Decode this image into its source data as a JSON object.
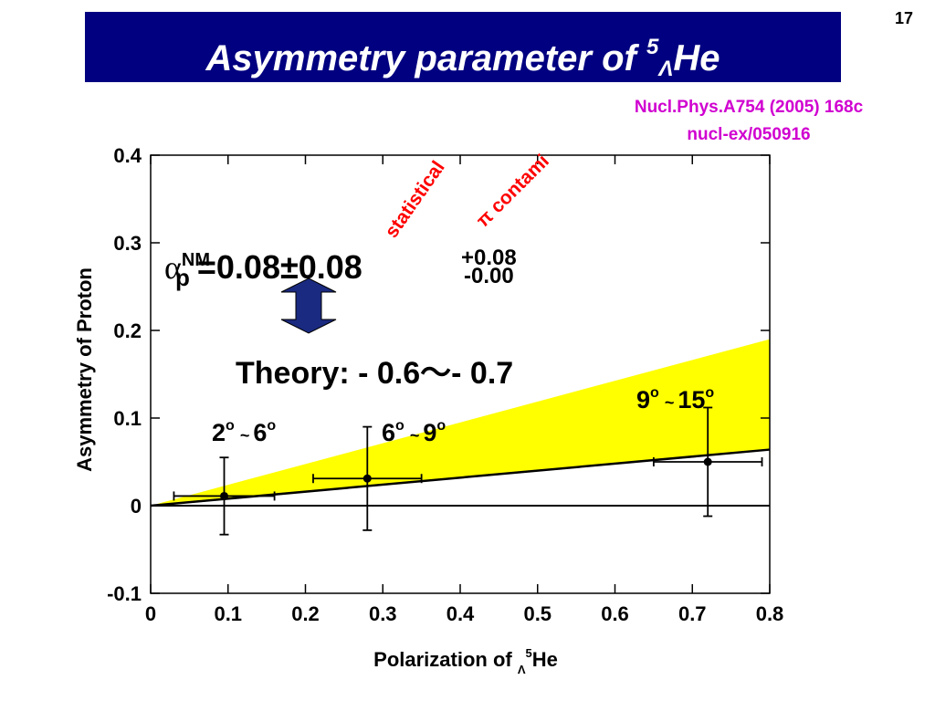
{
  "title": {
    "text": "Asymmetry parameter of ",
    "sup": "5",
    "sub": "Λ",
    "end": "He"
  },
  "page_number": "17",
  "reference": [
    "Nucl.Phys.A754 (2005) 168c",
    "nucl-ex/050916"
  ],
  "chart_data": {
    "type": "scatter",
    "xlabel": {
      "text": "Polarization of ",
      "sub": "Λ",
      "sup": "5",
      "end": "He"
    },
    "ylabel": "Asymmetry of Proton",
    "xlim": [
      0,
      0.8
    ],
    "ylim": [
      -0.1,
      0.4
    ],
    "xticks": [
      0,
      0.1,
      0.2,
      0.3,
      0.4,
      0.5,
      0.6,
      0.7,
      0.8
    ],
    "yticks": [
      -0.1,
      0,
      0.1,
      0.2,
      0.3,
      0.4
    ],
    "points": {
      "x": [
        0.095,
        0.28,
        0.72
      ],
      "y": [
        0.011,
        0.031,
        0.05
      ],
      "xerr": [
        0.065,
        0.07,
        0.07
      ],
      "yerr": [
        0.044,
        0.059,
        0.062
      ],
      "color": "#000000"
    },
    "fit_line": {
      "x": [
        0,
        0.8
      ],
      "y": [
        0,
        0.064
      ],
      "color": "#000000"
    },
    "theory_band": {
      "x": [
        0,
        0.8
      ],
      "upper": [
        0,
        0.19
      ],
      "lower": [
        0,
        0.064
      ],
      "color": "#ffff00"
    },
    "angle_labels": [
      {
        "from": "2",
        "to": "6",
        "deg": "o",
        "sep": "~"
      },
      {
        "from": "6",
        "to": "9",
        "deg": "o",
        "sep": "~"
      },
      {
        "from": "9",
        "to": "15",
        "deg": "o",
        "sep": "~"
      }
    ],
    "formula": {
      "symbol": "α",
      "sub": "p",
      "sup": "NM",
      "main": "=0.08±0.08",
      "plus": "+0.08",
      "minus": "-0.00"
    },
    "error_labels": [
      "statistical",
      "π contami"
    ],
    "theory": "Theory: - 0.6～- 0.7"
  }
}
